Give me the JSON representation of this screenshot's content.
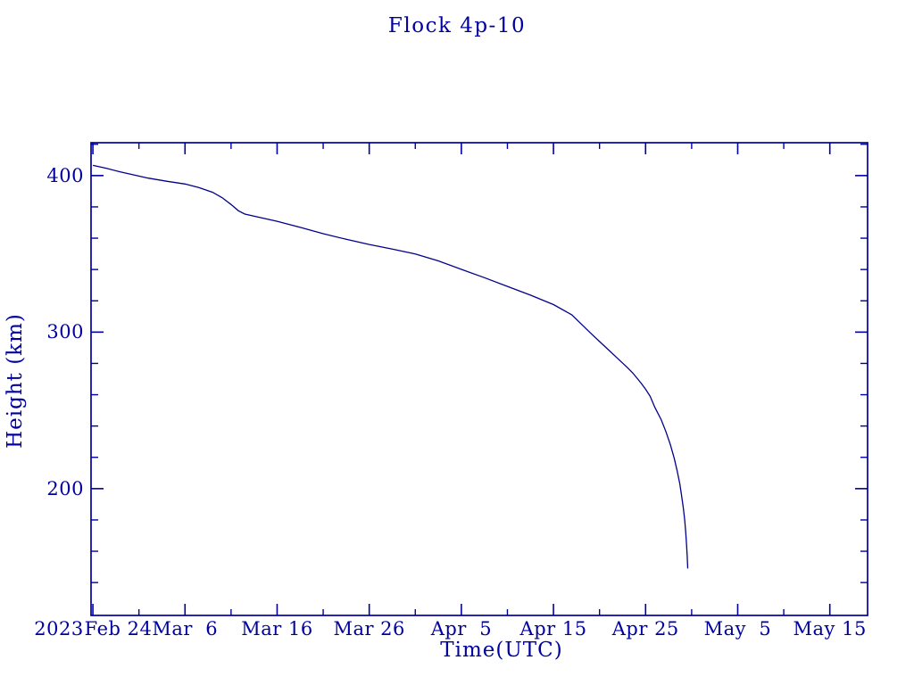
{
  "colors": {
    "text": "#0000a0",
    "axis": "#0000a0",
    "line": "#00008b",
    "background": "#ffffff"
  },
  "chart_data": {
    "type": "line",
    "title": "Flock 4p-10",
    "xlabel": "Time(UTC)",
    "ylabel": "Height (km)",
    "year_label": "2023",
    "x_unit": "days since 2023 Feb 24",
    "x_tick_labels": [
      "Feb 24",
      "Mar  6",
      "Mar 16",
      "Mar 26",
      "Apr  5",
      "Apr 15",
      "Apr 25",
      "May  5",
      "May 15"
    ],
    "x_tick_days": [
      0,
      10,
      20,
      30,
      40,
      50,
      60,
      70,
      80
    ],
    "x_minor_tick_days": [
      5,
      15,
      25,
      35,
      45,
      55,
      65,
      75
    ],
    "x_range_days": [
      -0.2,
      84.1
    ],
    "y_ticks": [
      200,
      300,
      400
    ],
    "y_minor_ticks": [
      140,
      160,
      180,
      220,
      240,
      260,
      280,
      320,
      340,
      360,
      380,
      420
    ],
    "y_range": [
      119,
      421
    ],
    "grid": false,
    "legend": null,
    "series": [
      {
        "name": "Flock 4p-10 height",
        "points_d_km": [
          [
            0,
            406.5
          ],
          [
            1.5,
            404.6
          ],
          [
            3,
            402.3
          ],
          [
            4.5,
            400.3
          ],
          [
            6,
            398.4
          ],
          [
            8,
            396.4
          ],
          [
            10,
            394.6
          ],
          [
            11.5,
            392.4
          ],
          [
            13,
            389.3
          ],
          [
            14,
            386.0
          ],
          [
            15,
            381.5
          ],
          [
            15.8,
            377.5
          ],
          [
            16.5,
            375.4
          ],
          [
            18,
            373.4
          ],
          [
            20,
            370.8
          ],
          [
            22.5,
            366.9
          ],
          [
            25,
            362.9
          ],
          [
            27.5,
            359.3
          ],
          [
            30,
            356.0
          ],
          [
            32.5,
            353.0
          ],
          [
            35,
            349.9
          ],
          [
            37.5,
            345.5
          ],
          [
            40,
            340.1
          ],
          [
            42.5,
            334.8
          ],
          [
            45,
            329.2
          ],
          [
            47.5,
            323.6
          ],
          [
            50,
            317.6
          ],
          [
            52,
            311.0
          ],
          [
            54,
            299.5
          ],
          [
            55,
            294.0
          ],
          [
            56,
            288.5
          ],
          [
            57,
            283.0
          ],
          [
            58,
            277.5
          ],
          [
            58.6,
            274.0
          ],
          [
            59.5,
            267.5
          ],
          [
            60,
            263.5
          ],
          [
            60.5,
            259.0
          ],
          [
            61,
            252.0
          ],
          [
            61.7,
            244.0
          ],
          [
            62.2,
            236.5
          ],
          [
            62.7,
            228.0
          ],
          [
            63.1,
            219.5
          ],
          [
            63.4,
            212.0
          ],
          [
            63.7,
            203.5
          ],
          [
            63.9,
            196.0
          ],
          [
            64.1,
            187.5
          ],
          [
            64.25,
            180.0
          ],
          [
            64.35,
            172.5
          ],
          [
            64.45,
            164.0
          ],
          [
            64.52,
            157.0
          ],
          [
            64.58,
            149.0
          ]
        ]
      }
    ]
  }
}
